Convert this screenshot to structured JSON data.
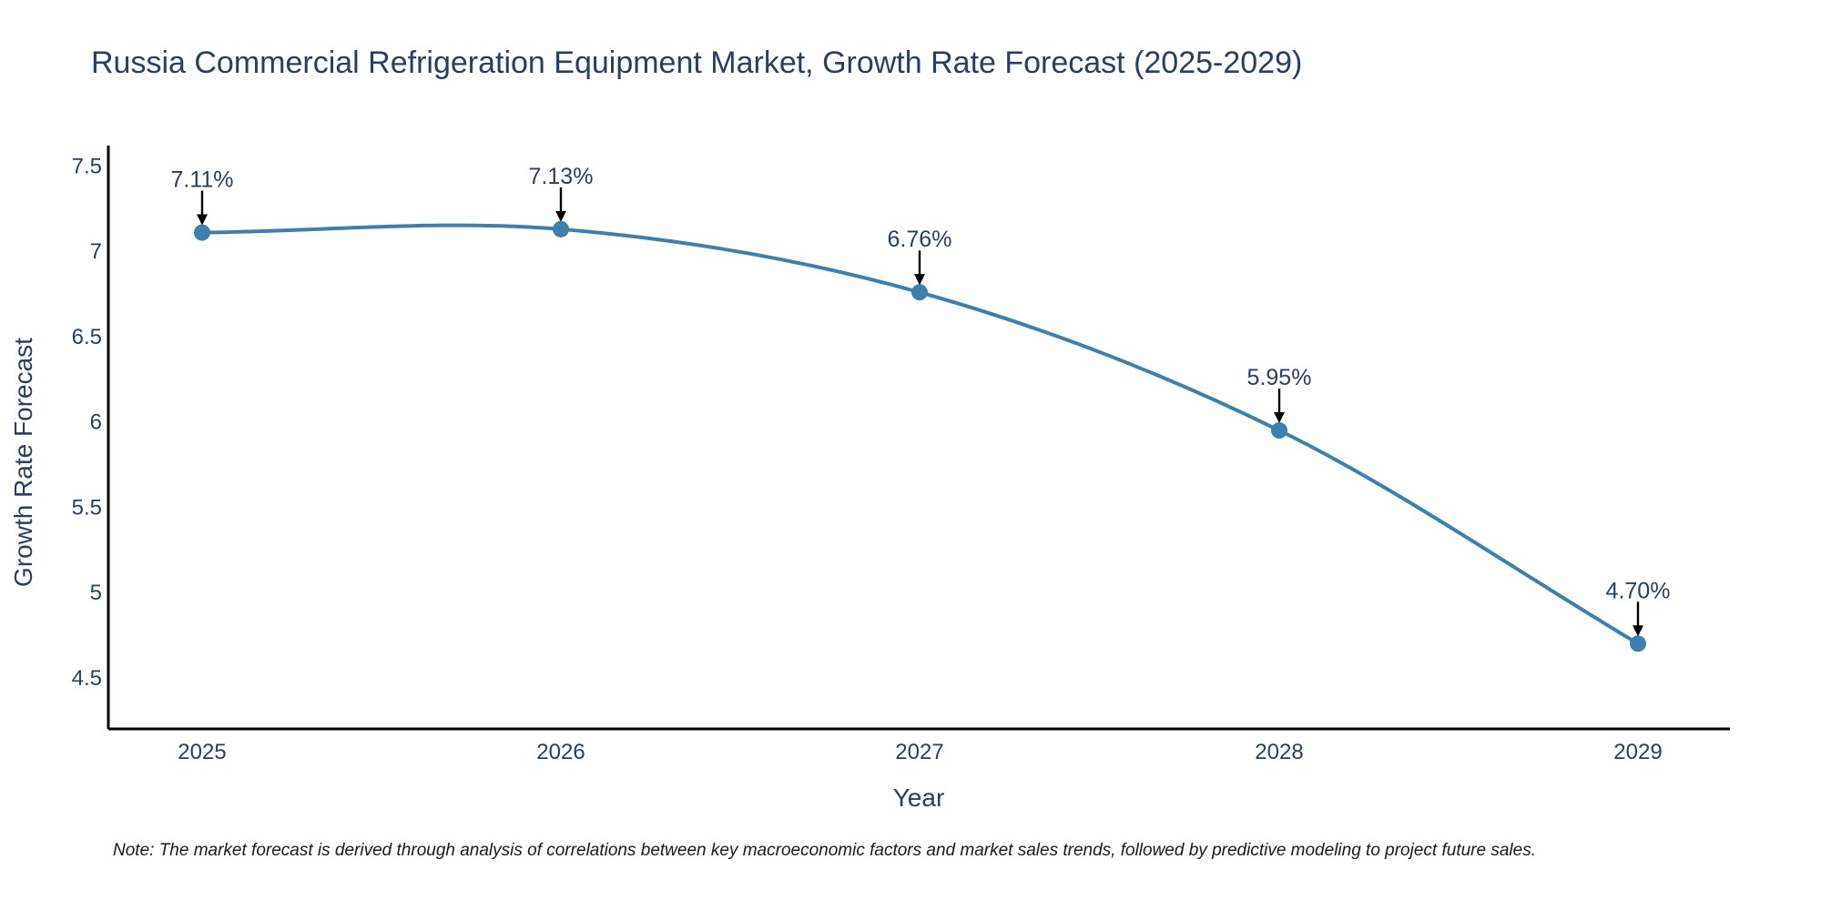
{
  "chart_data": {
    "type": "line",
    "title": "Russia Commercial Refrigeration Equipment Market, Growth Rate Forecast (2025-2029)",
    "xlabel": "Year",
    "ylabel": "Growth Rate Forecast",
    "categories": [
      "2025",
      "2026",
      "2027",
      "2028",
      "2029"
    ],
    "series": [
      {
        "name": "Growth Rate Forecast",
        "values": [
          7.11,
          7.13,
          6.76,
          5.95,
          4.7
        ],
        "labels": [
          "7.11%",
          "7.13%",
          "6.76%",
          "5.95%",
          "4.70%"
        ]
      }
    ],
    "ylim": [
      4.2,
      7.62
    ],
    "yticks": [
      4.5,
      5,
      5.5,
      6,
      6.5,
      7,
      7.5
    ],
    "ytick_labels": [
      "4.5",
      "5",
      "5.5",
      "6",
      "6.5",
      "7",
      "7.5"
    ],
    "grid": false,
    "line_color": "#3d7fad",
    "marker_color": "#3d7fad",
    "arrow_color": "#000000",
    "axis_color": "#000000",
    "note": "Note: The market forecast is derived through analysis of correlations between key macroeconomic factors and market sales trends, followed by predictive modeling to project future sales."
  }
}
